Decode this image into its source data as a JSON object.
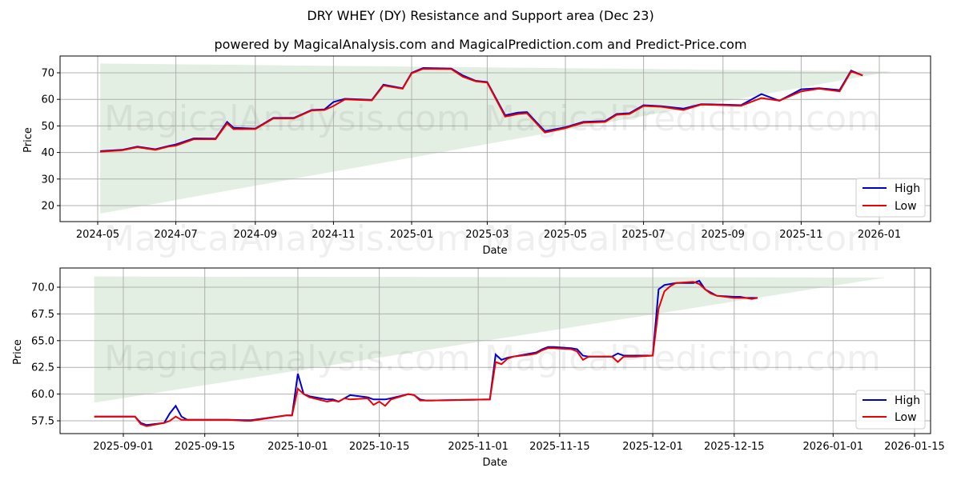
{
  "title": "DRY WHEY (DY) Resistance and Support area (Dec 23)",
  "subtitle": "powered by MagicalAnalysis.com and MagicalPrediction.com and Predict-Price.com",
  "watermarks": [
    "MagicalAnalysis.com",
    "MagicalPrediction.com"
  ],
  "colors": {
    "high": "#0000cc",
    "low": "#ee0000",
    "band": "#c8dfc8",
    "grid": "#b0b0b0"
  },
  "legend": {
    "high": "High",
    "low": "Low"
  },
  "chart_data": [
    {
      "type": "line",
      "title": "DRY WHEY (DY) Resistance and Support area (Dec 23)",
      "xlabel": "Date",
      "ylabel": "Price",
      "ylim": [
        14,
        76
      ],
      "yticks": [
        "20",
        "30",
        "40",
        "50",
        "60",
        "70"
      ],
      "xticks": [
        "2024-05",
        "2024-07",
        "2024-09",
        "2024-11",
        "2025-01",
        "2025-03",
        "2025-05",
        "2025-07",
        "2025-09",
        "2025-11",
        "2026-01"
      ],
      "grid": true,
      "legend_position": "lower right",
      "band": {
        "x_start": "2024-05-03",
        "x_end": "2026-01-10",
        "upper_start": 73.5,
        "upper_end": 70.5,
        "lower_start": 17,
        "lower_end": 70.5
      },
      "x": [
        "2024-05-03",
        "2024-05-20",
        "2024-06-01",
        "2024-06-15",
        "2024-06-25",
        "2024-07-01",
        "2024-07-15",
        "2024-08-01",
        "2024-08-10",
        "2024-08-15",
        "2024-09-01",
        "2024-09-15",
        "2024-10-01",
        "2024-10-15",
        "2024-10-25",
        "2024-11-01",
        "2024-11-10",
        "2024-12-01",
        "2024-12-10",
        "2024-12-25",
        "2025-01-01",
        "2025-01-10",
        "2025-02-01",
        "2025-02-10",
        "2025-02-20",
        "2025-03-01",
        "2025-03-15",
        "2025-03-25",
        "2025-04-01",
        "2025-04-15",
        "2025-05-01",
        "2025-05-15",
        "2025-06-01",
        "2025-06-10",
        "2025-06-20",
        "2025-07-01",
        "2025-07-15",
        "2025-08-01",
        "2025-08-15",
        "2025-09-01",
        "2025-09-15",
        "2025-10-01",
        "2025-10-15",
        "2025-11-01",
        "2025-11-15",
        "2025-12-01",
        "2025-12-10",
        "2025-12-19"
      ],
      "series": [
        {
          "name": "High",
          "values": [
            40.5,
            41,
            42.2,
            41.2,
            42.4,
            43,
            45.3,
            45.2,
            51.5,
            49.3,
            49,
            53,
            53,
            56,
            56.2,
            59,
            60.2,
            59.8,
            65.5,
            64.2,
            70,
            71.8,
            71.6,
            69,
            67,
            66.5,
            54,
            55,
            55.2,
            48,
            49.5,
            51.5,
            51.8,
            54.5,
            54.8,
            57.8,
            57.4,
            56.5,
            58.2,
            58,
            57.8,
            62,
            59.5,
            63.8,
            64.2,
            63.5,
            70.8,
            69
          ]
        },
        {
          "name": "Low",
          "values": [
            40.3,
            40.8,
            42,
            41,
            42.2,
            42.6,
            45,
            45,
            51,
            48.8,
            48.8,
            52.8,
            52.8,
            55.8,
            56,
            57.5,
            60,
            59.6,
            65.2,
            64,
            69.8,
            71.5,
            71.4,
            68.5,
            66.8,
            66.3,
            53.5,
            54.5,
            54.8,
            47.5,
            49.2,
            51.2,
            51.5,
            54.2,
            54.5,
            57.5,
            57.2,
            56,
            58,
            57.8,
            57.6,
            60.5,
            59.5,
            63,
            64,
            63,
            70.5,
            69
          ]
        }
      ]
    },
    {
      "type": "line",
      "title": "",
      "xlabel": "Date",
      "ylabel": "Price",
      "ylim": [
        56.3,
        71.8
      ],
      "yticks": [
        "57.5",
        "60.0",
        "62.5",
        "65.0",
        "67.5",
        "70.0"
      ],
      "xticks": [
        "2025-09-01",
        "2025-09-15",
        "2025-10-01",
        "2025-10-15",
        "2025-11-01",
        "2025-11-15",
        "2025-12-01",
        "2025-12-15",
        "2026-01-01",
        "2026-01-15"
      ],
      "grid": true,
      "legend_position": "lower right",
      "band": {
        "x_start": "2025-08-27",
        "x_end": "2026-01-10",
        "upper_start": 71.0,
        "upper_end": 70.9,
        "lower_start": 59.2,
        "lower_end": 70.9
      },
      "x": [
        "2025-08-27",
        "2025-09-03",
        "2025-09-04",
        "2025-09-05",
        "2025-09-08",
        "2025-09-09",
        "2025-09-10",
        "2025-09-11",
        "2025-09-12",
        "2025-09-15",
        "2025-09-19",
        "2025-09-22",
        "2025-09-23",
        "2025-09-29",
        "2025-09-30",
        "2025-10-01",
        "2025-10-02",
        "2025-10-03",
        "2025-10-06",
        "2025-10-07",
        "2025-10-08",
        "2025-10-09",
        "2025-10-10",
        "2025-10-13",
        "2025-10-14",
        "2025-10-15",
        "2025-10-16",
        "2025-10-17",
        "2025-10-20",
        "2025-10-21",
        "2025-10-22",
        "2025-10-23",
        "2025-10-24",
        "2025-11-03",
        "2025-11-04",
        "2025-11-05",
        "2025-11-06",
        "2025-11-07",
        "2025-11-10",
        "2025-11-11",
        "2025-11-12",
        "2025-11-13",
        "2025-11-14",
        "2025-11-17",
        "2025-11-18",
        "2025-11-19",
        "2025-11-20",
        "2025-11-24",
        "2025-11-25",
        "2025-11-26",
        "2025-11-28",
        "2025-12-01",
        "2025-12-02",
        "2025-12-03",
        "2025-12-04",
        "2025-12-05",
        "2025-12-08",
        "2025-12-09",
        "2025-12-10",
        "2025-12-11",
        "2025-12-12",
        "2025-12-15",
        "2025-12-16",
        "2025-12-17",
        "2025-12-18",
        "2025-12-19"
      ],
      "series": [
        {
          "name": "High",
          "values": [
            57.9,
            57.9,
            57.3,
            57.1,
            57.3,
            58.2,
            58.9,
            57.9,
            57.6,
            57.6,
            57.6,
            57.55,
            57.55,
            58.0,
            58.0,
            61.9,
            60.0,
            59.8,
            59.5,
            59.5,
            59.3,
            59.6,
            59.9,
            59.7,
            59.5,
            59.5,
            59.5,
            59.6,
            60.0,
            59.9,
            59.5,
            59.4,
            59.4,
            59.5,
            63.7,
            63.2,
            63.4,
            63.5,
            63.8,
            63.9,
            64.2,
            64.4,
            64.4,
            64.3,
            64.2,
            63.6,
            63.5,
            63.5,
            63.8,
            63.6,
            63.6,
            63.6,
            69.8,
            70.2,
            70.3,
            70.4,
            70.4,
            70.6,
            69.8,
            69.5,
            69.2,
            69.1,
            69.1,
            69.0,
            69.0,
            69.0
          ]
        },
        {
          "name": "Low",
          "values": [
            57.9,
            57.9,
            57.2,
            57.0,
            57.3,
            57.5,
            57.9,
            57.6,
            57.6,
            57.6,
            57.6,
            57.5,
            57.5,
            58.0,
            58.0,
            60.5,
            60.0,
            59.7,
            59.3,
            59.4,
            59.3,
            59.6,
            59.5,
            59.6,
            59.0,
            59.3,
            58.9,
            59.5,
            60.0,
            59.9,
            59.4,
            59.4,
            59.4,
            59.5,
            63.0,
            62.8,
            63.3,
            63.5,
            63.7,
            63.8,
            64.1,
            64.3,
            64.3,
            64.2,
            64.0,
            63.2,
            63.5,
            63.5,
            63.0,
            63.5,
            63.5,
            63.6,
            68.0,
            69.6,
            70.1,
            70.4,
            70.5,
            70.3,
            69.8,
            69.4,
            69.2,
            69.0,
            69.0,
            69.0,
            68.9,
            69.0
          ]
        }
      ]
    }
  ]
}
